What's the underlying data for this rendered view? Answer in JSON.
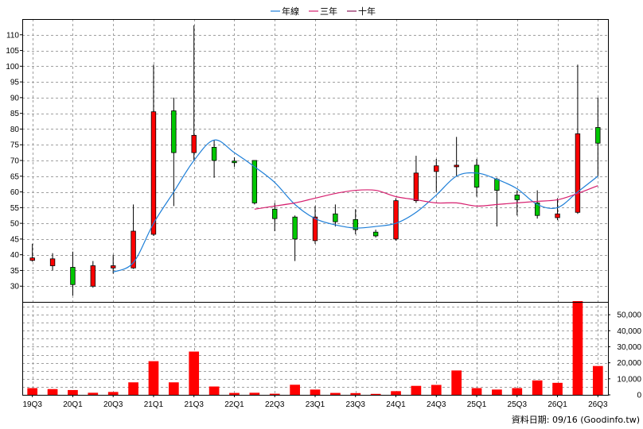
{
  "chart_data": {
    "type": "candlestick",
    "legend": [
      {
        "name": "年線",
        "color": "#1e7fd8"
      },
      {
        "name": "三年",
        "color": "#d61e6e"
      },
      {
        "name": "十年",
        "color": "#8a1a5a"
      }
    ],
    "up_color": "#ff0000",
    "down_color": "#00c800",
    "volume_color": "#ff0000",
    "x_tick_labels": [
      "19Q3",
      "20Q1",
      "20Q3",
      "21Q1",
      "21Q3",
      "22Q1",
      "22Q3",
      "23Q1",
      "23Q3",
      "24Q1",
      "24Q3",
      "25Q1",
      "25Q3",
      "26Q1",
      "26Q3"
    ],
    "price_axis": {
      "ticks": [
        30,
        35,
        40,
        45,
        50,
        55,
        60,
        65,
        70,
        75,
        80,
        85,
        90,
        95,
        100,
        105,
        110
      ],
      "ylim": [
        25,
        115
      ]
    },
    "volume_axis": {
      "ticks": [
        "0",
        "10,000",
        "20,000",
        "30,000",
        "40,000",
        "50,000"
      ],
      "tick_values": [
        0,
        10000,
        20000,
        30000,
        40000,
        50000
      ],
      "ylim": [
        0,
        58000
      ]
    },
    "candles": [
      {
        "o": 38.2,
        "h": 43.5,
        "l": 37.8,
        "c": 39.0,
        "v": 4200
      },
      {
        "o": 36.5,
        "h": 40.5,
        "l": 35.0,
        "c": 38.7,
        "v": 3600
      },
      {
        "o": 36.0,
        "h": 41.0,
        "l": 27.0,
        "c": 30.5,
        "v": 3000
      },
      {
        "o": 30.0,
        "h": 38.0,
        "l": 29.5,
        "c": 36.5,
        "v": 1300
      },
      {
        "o": 35.8,
        "h": 40.0,
        "l": 34.0,
        "c": 36.5,
        "v": 1800
      },
      {
        "o": 35.8,
        "h": 56.0,
        "l": 35.5,
        "c": 47.5,
        "v": 7800
      },
      {
        "o": 46.5,
        "h": 100.5,
        "l": 46.0,
        "c": 85.5,
        "v": 21000
      },
      {
        "o": 85.8,
        "h": 90.0,
        "l": 55.5,
        "c": 72.5,
        "v": 7800
      },
      {
        "o": 72.5,
        "h": 113.0,
        "l": 70.0,
        "c": 78.0,
        "v": 27000
      },
      {
        "o": 74.2,
        "h": 76.5,
        "l": 64.5,
        "c": 70.0,
        "v": 5200
      },
      {
        "o": 69.8,
        "h": 71.0,
        "l": 68.0,
        "c": 69.3,
        "v": 1200
      },
      {
        "o": 70.0,
        "h": 70.0,
        "l": 56.0,
        "c": 56.5,
        "v": 1300
      },
      {
        "o": 54.5,
        "h": 56.5,
        "l": 47.5,
        "c": 51.5,
        "v": 700
      },
      {
        "o": 52.0,
        "h": 52.5,
        "l": 38.0,
        "c": 45.0,
        "v": 6300
      },
      {
        "o": 44.5,
        "h": 55.5,
        "l": 43.5,
        "c": 52.0,
        "v": 3300
      },
      {
        "o": 53.0,
        "h": 56.0,
        "l": 49.0,
        "c": 50.5,
        "v": 1200
      },
      {
        "o": 51.2,
        "h": 54.5,
        "l": 46.5,
        "c": 48.0,
        "v": 1100
      },
      {
        "o": 47.2,
        "h": 48.0,
        "l": 45.5,
        "c": 46.0,
        "v": 600
      },
      {
        "o": 45.0,
        "h": 58.0,
        "l": 44.5,
        "c": 57.2,
        "v": 2300
      },
      {
        "o": 57.2,
        "h": 71.5,
        "l": 56.5,
        "c": 66.0,
        "v": 5600
      },
      {
        "o": 66.5,
        "h": 70.5,
        "l": 60.0,
        "c": 68.3,
        "v": 6200
      },
      {
        "o": 68.0,
        "h": 77.5,
        "l": 65.0,
        "c": 68.5,
        "v": 15200
      },
      {
        "o": 68.5,
        "h": 70.5,
        "l": 58.5,
        "c": 61.5,
        "v": 4200
      },
      {
        "o": 64.0,
        "h": 64.5,
        "l": 49.0,
        "c": 60.5,
        "v": 3300
      },
      {
        "o": 59.0,
        "h": 60.5,
        "l": 52.5,
        "c": 57.5,
        "v": 4200
      },
      {
        "o": 56.5,
        "h": 60.5,
        "l": 51.5,
        "c": 52.5,
        "v": 9000
      },
      {
        "o": 51.8,
        "h": 58.0,
        "l": 51.0,
        "c": 53.0,
        "v": 7500
      },
      {
        "o": 53.5,
        "h": 100.5,
        "l": 53.0,
        "c": 78.5,
        "v": 58500
      },
      {
        "o": 80.5,
        "h": 90.0,
        "l": 65.0,
        "c": 75.5,
        "v": 18000
      }
    ],
    "year_line": [
      null,
      null,
      null,
      null,
      34.5,
      37.5,
      50.0,
      60.0,
      70.0,
      76.5,
      72.5,
      68.0,
      63.0,
      56.0,
      51.5,
      49.5,
      48.5,
      49.0,
      50.0,
      53.5,
      59.0,
      65.0,
      66.0,
      64.0,
      61.0,
      56.0,
      55.0,
      60.0,
      65.0
    ],
    "three_year_line": [
      null,
      null,
      null,
      null,
      null,
      null,
      null,
      null,
      null,
      null,
      null,
      54.5,
      55.5,
      56.5,
      58.0,
      59.5,
      60.5,
      60.5,
      58.5,
      57.5,
      56.5,
      56.5,
      55.5,
      56.0,
      56.5,
      57.0,
      57.5,
      59.5,
      62.0
    ],
    "footer": "資料日期: 09/16  (Goodinfo.tw)"
  }
}
